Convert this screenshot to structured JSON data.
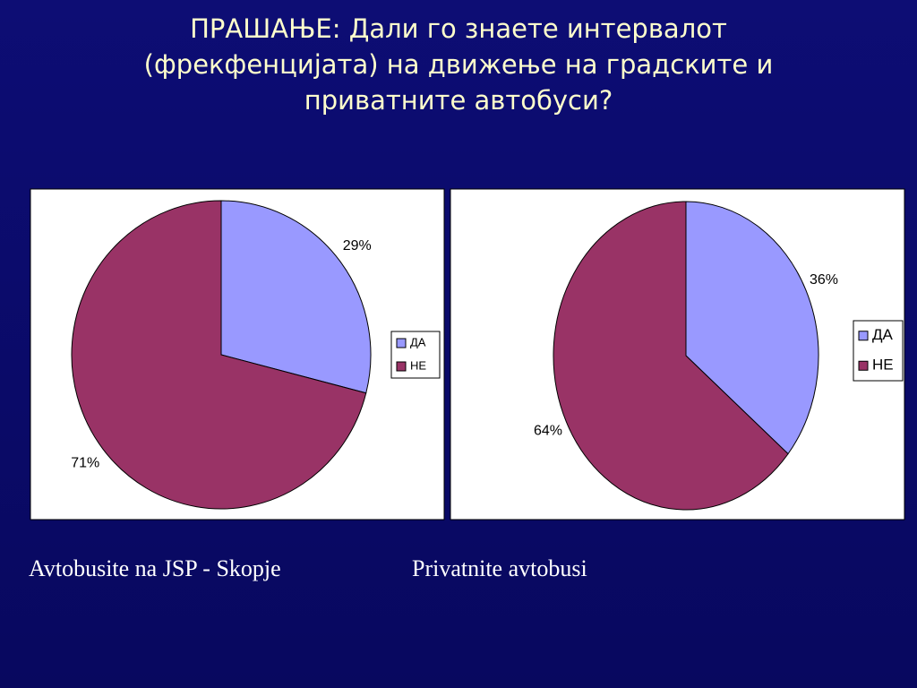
{
  "slide_title": "ПРАШАЊЕ: Дали го знаете интервалот (фрекфенцијата) на движење на градските и приватните автобуси?",
  "chart_data": [
    {
      "type": "pie",
      "caption": "Avtobusite na JSP - Skopje",
      "categories": [
        "ДА",
        "НЕ"
      ],
      "values": [
        29,
        71
      ],
      "value_labels": [
        "29%",
        "71%"
      ],
      "colors": [
        "#9999ff",
        "#993366"
      ],
      "legend": "right"
    },
    {
      "type": "pie",
      "caption": "Privatnite avtobusi",
      "categories": [
        "ДА",
        "НЕ"
      ],
      "values": [
        36,
        64
      ],
      "value_labels": [
        "36%",
        "64%"
      ],
      "colors": [
        "#9999ff",
        "#993366"
      ],
      "legend": "right"
    }
  ]
}
